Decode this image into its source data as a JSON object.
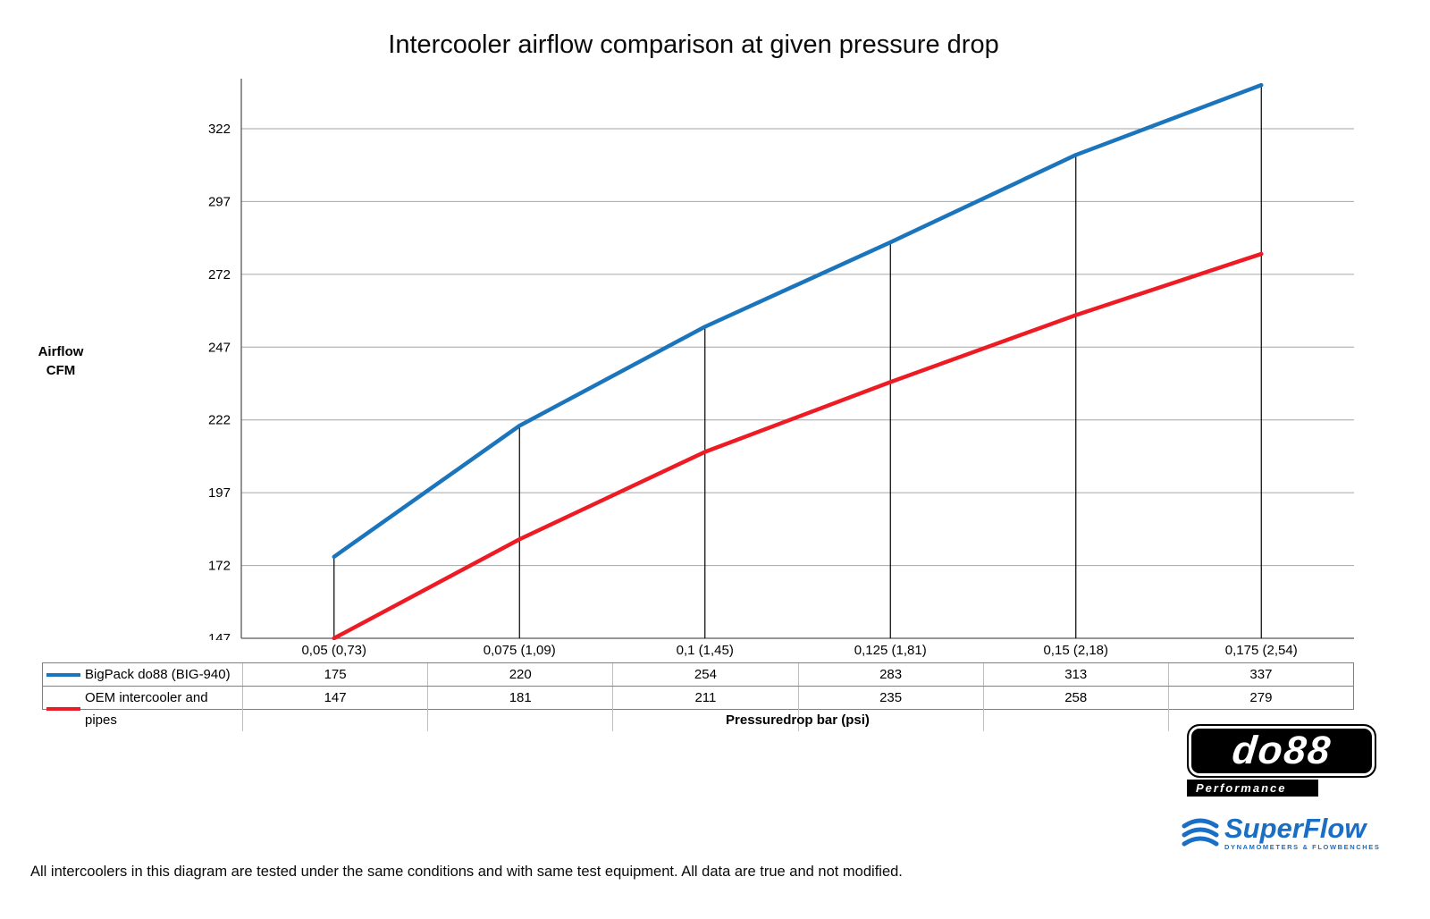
{
  "chart_data": {
    "type": "line",
    "title": "Intercooler airflow comparison at given pressure drop",
    "xlabel": "Pressuredrop bar (psi)",
    "ylabel": "Airflow CFM",
    "ylabel_lines": [
      "Airflow",
      "CFM"
    ],
    "categories": [
      "0,05 (0,73)",
      "0,075 (1,09)",
      "0,1 (1,45)",
      "0,125 (1,81)",
      "0,15 (2,18)",
      "0,175 (2,54)"
    ],
    "series": [
      {
        "name": "BigPack do88 (BIG-940)",
        "color": "#1b75bc",
        "values": [
          175,
          220,
          254,
          283,
          313,
          337
        ]
      },
      {
        "name": "OEM intercooler and pipes",
        "color": "#ed1c24",
        "values": [
          147,
          181,
          211,
          235,
          258,
          279
        ]
      }
    ],
    "yticks": [
      147,
      172,
      197,
      222,
      247,
      272,
      297,
      322
    ],
    "ylim": [
      147,
      340
    ],
    "grid": true,
    "legend_position": "table-left",
    "gridline_color": "#a6a6a6",
    "dropline_color": "#000000"
  },
  "footer": {
    "note": "All intercoolers in this diagram are tested under the same conditions and with same test equipment. All data are true and not modified."
  },
  "logos": {
    "do88": {
      "name": "do88",
      "sub": "Performance"
    },
    "superflow": {
      "name": "SuperFlow",
      "sub": "DYNAMOMETERS & FLOWBENCHES"
    }
  }
}
